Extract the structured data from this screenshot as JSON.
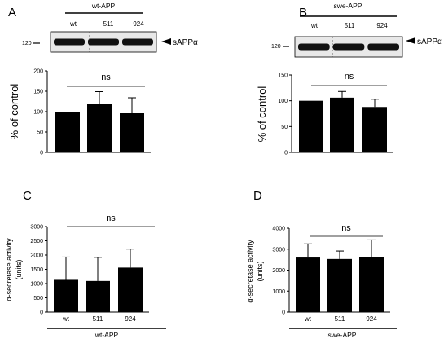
{
  "chart_data": [
    {
      "panel": "A",
      "type": "bar",
      "construct": "wt-APP",
      "lanes": [
        "wt",
        "511",
        "924"
      ],
      "mw_marker": "120",
      "band_label": "sAPPα",
      "categories": [
        "wt",
        "511",
        "924"
      ],
      "values": [
        100,
        118,
        96
      ],
      "errors": [
        0,
        31,
        38
      ],
      "ylabel": "% of control",
      "ylim": [
        0,
        200
      ],
      "yticks": [
        0,
        50,
        100,
        150,
        200
      ],
      "significance": "ns"
    },
    {
      "panel": "B",
      "type": "bar",
      "construct": "swe-APP",
      "lanes": [
        "wt",
        "511",
        "924"
      ],
      "mw_marker": "120",
      "band_label": "sAPPα",
      "categories": [
        "wt",
        "511",
        "924"
      ],
      "values": [
        100,
        106,
        88
      ],
      "errors": [
        0,
        12,
        15
      ],
      "ylabel": "% of control",
      "ylim": [
        0,
        150
      ],
      "yticks": [
        0,
        50,
        100,
        150
      ],
      "significance": "ns"
    },
    {
      "panel": "C",
      "type": "bar",
      "construct": "wt-APP",
      "categories": [
        "wt",
        "511",
        "924"
      ],
      "values": [
        1130,
        1090,
        1560
      ],
      "errors": [
        800,
        830,
        650
      ],
      "ylabel_line1": "α-secretase activity",
      "ylabel_line2": "(units)",
      "ylim": [
        0,
        3000
      ],
      "yticks": [
        0,
        500,
        1000,
        1500,
        2000,
        2500,
        3000
      ],
      "significance": "ns"
    },
    {
      "panel": "D",
      "type": "bar",
      "construct": "swe-APP",
      "categories": [
        "wt",
        "511",
        "924"
      ],
      "values": [
        2600,
        2530,
        2620
      ],
      "errors": [
        650,
        380,
        820
      ],
      "ylabel_line1": "α-secretase activity",
      "ylabel_line2": "(units)",
      "ylim": [
        0,
        4000
      ],
      "yticks": [
        0,
        1000,
        2000,
        3000,
        4000
      ],
      "significance": "ns"
    }
  ]
}
